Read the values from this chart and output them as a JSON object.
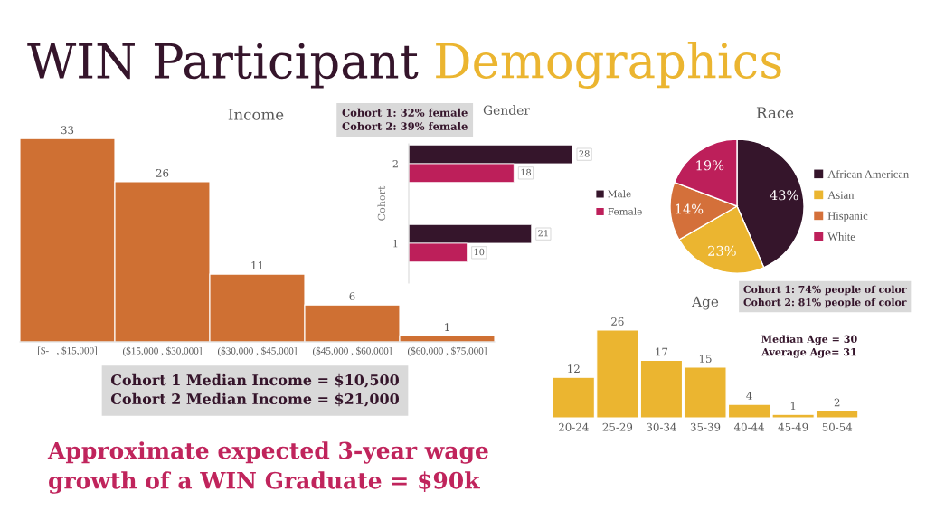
{
  "chart_data": [
    {
      "type": "other",
      "title": "WIN Participant Demographics",
      "annotations": [
        "Approximate expected 3-year wage\ngrowth of a WIN Graduate = $90k"
      ]
    },
    {
      "type": "bar",
      "title": "Income",
      "categories": [
        "[$-   , $15,000]",
        "($15,000 , $30,000]",
        "($30,000 , $45,000]",
        "($45,000 , $60,000]",
        "($60,000 , $75,000]"
      ],
      "values": [
        33,
        26,
        11,
        6,
        1
      ],
      "color": "#cf7033",
      "data_labels": true,
      "tick_labels": "x",
      "annotations": [
        "Cohort 1 Median Income = $10,500\nCohort 2 Median Income = $21,000"
      ]
    },
    {
      "type": "bar",
      "orientation": "horizontal",
      "title": "Gender",
      "ylabel": "Cohort",
      "categories": [
        "2",
        "1"
      ],
      "series": [
        {
          "name": "Male",
          "color": "#35152b",
          "values": [
            28,
            21
          ]
        },
        {
          "name": "Female",
          "color": "#bd1f5a",
          "values": [
            18,
            10
          ]
        }
      ],
      "data_labels": true,
      "legend": "right",
      "tick_labels": "y",
      "annotations": [
        "Cohort 1: 32% female\nCohort 2: 39% female"
      ]
    },
    {
      "type": "pie",
      "title": "Race",
      "categories": [
        "African American",
        "Asian",
        "Hispanic",
        "White"
      ],
      "values": [
        43,
        23,
        14,
        19
      ],
      "colors": [
        "#35152b",
        "#ebb530",
        "#d4703a",
        "#bd1f5a"
      ],
      "value_labels": [
        "43%",
        "23%",
        "14%",
        "19%"
      ],
      "legend": "right",
      "annotations": [
        "Cohort 1: 74% people of color\nCohort 2: 81% people of color"
      ]
    },
    {
      "type": "bar",
      "title": "Age",
      "categories": [
        "20-24",
        "25-29",
        "30-34",
        "35-39",
        "40-44",
        "45-49",
        "50-54"
      ],
      "values": [
        12,
        26,
        17,
        15,
        4,
        1,
        2
      ],
      "color": "#ebb530",
      "data_labels": true,
      "tick_labels": "x",
      "annotations": [
        "Median Age = 30\nAverage Age= 31"
      ]
    }
  ]
}
